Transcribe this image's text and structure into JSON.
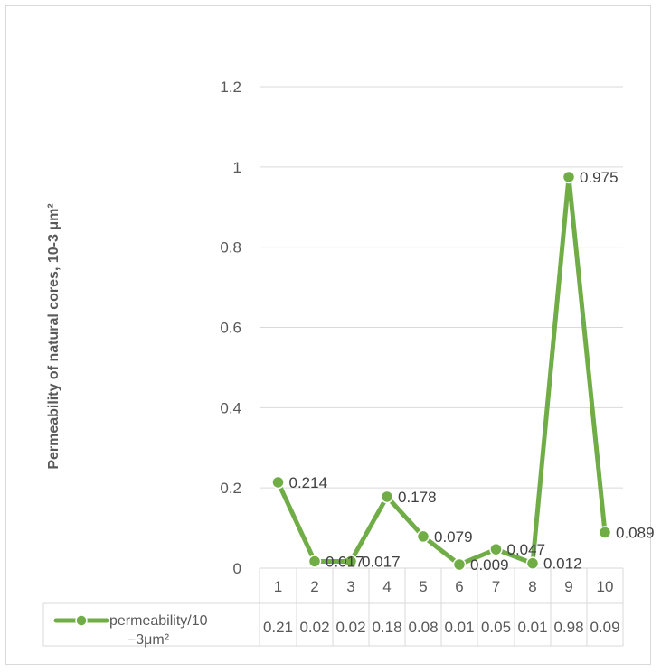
{
  "chart_data": {
    "type": "line",
    "ylabel": "Permeability of natural cores, 10-3  μm²",
    "xlabel": "",
    "ylim": [
      0,
      1.2
    ],
    "yticks": [
      "0",
      "0.2",
      "0.4",
      "0.6",
      "0.8",
      "1",
      "1.2"
    ],
    "grid": true,
    "legend_position": "bottom data table",
    "categories": [
      "1",
      "2",
      "3",
      "4",
      "5",
      "6",
      "7",
      "8",
      "9",
      "10"
    ],
    "series": [
      {
        "name": "permeability/10 −3μm²",
        "name_lines": [
          "permeability/10",
          "−3μm²"
        ],
        "color": "#70ad47",
        "values": [
          0.214,
          0.017,
          0.017,
          0.178,
          0.079,
          0.009,
          0.047,
          0.012,
          0.975,
          0.089
        ],
        "data_labels": [
          "0.214",
          "0.017",
          "0.017",
          "0.178",
          "0.079",
          "0.009",
          "0.047",
          "0.012",
          "0.975",
          "0.089"
        ],
        "table_values": [
          "0.21",
          "0.02",
          "0.02",
          "0.18",
          "0.08",
          "0.01",
          "0.05",
          "0.01",
          "0.98",
          "0.09"
        ]
      }
    ]
  }
}
